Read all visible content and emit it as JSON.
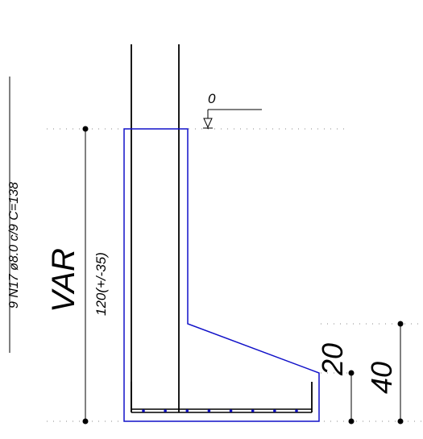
{
  "annotations": {
    "level_label": "0",
    "rebar_spec": "9 N17 ø8.0 c/9  C=138",
    "height_var": "VAR",
    "height_range": "120(+/-35)",
    "dim_toe": "20",
    "dim_base": "40"
  },
  "colors": {
    "outline": "#1010c8",
    "line": "#000000",
    "guide": "#8a8a8a",
    "rebar_dots": "#1010c8"
  },
  "rebar_dot_count": 8
}
